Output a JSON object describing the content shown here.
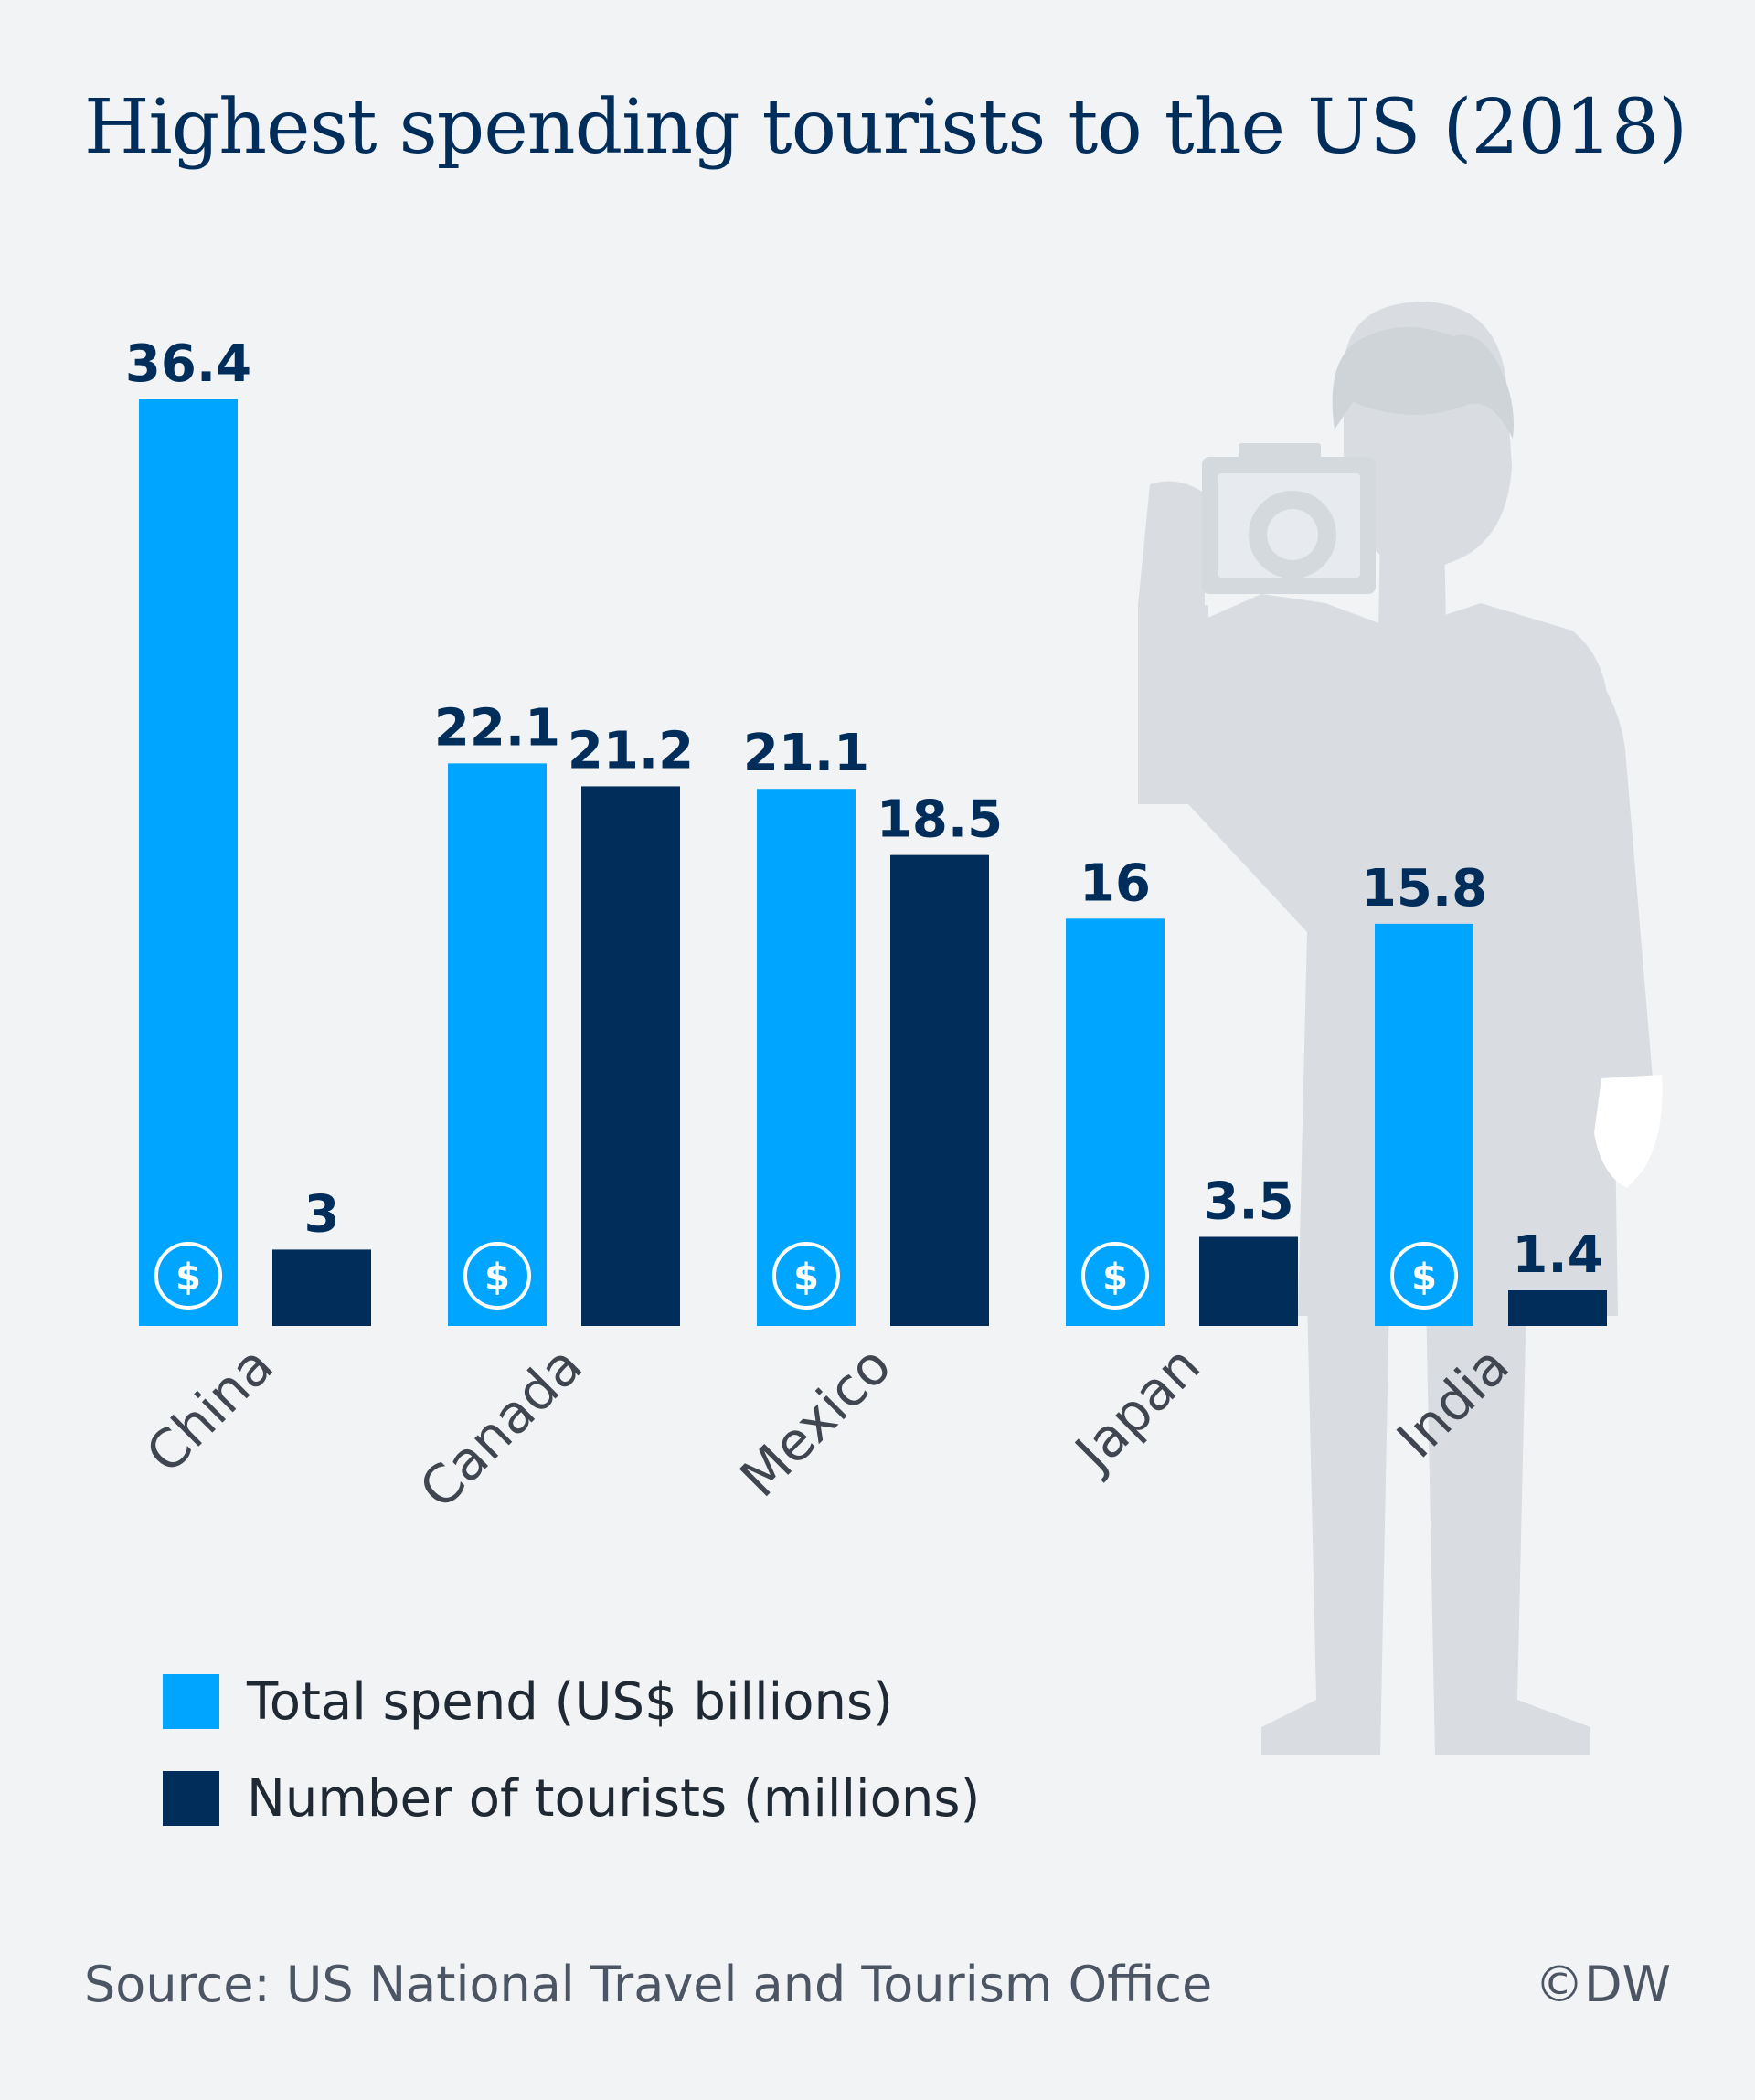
{
  "chart_data": {
    "type": "bar",
    "title": "Highest spending tourists to the US (2018)",
    "categories": [
      "China",
      "Canada",
      "Mexico",
      "Japan",
      "India"
    ],
    "series": [
      {
        "name": "Total spend (US$ billions)",
        "values": [
          36.4,
          22.1,
          21.1,
          16,
          15.8
        ],
        "value_labels": [
          "36.4",
          "22.1",
          "21.1",
          "16",
          "15.8"
        ],
        "color": "#00a5ff",
        "icon": "dollar-icon"
      },
      {
        "name": "Number of tourists (millions)",
        "values": [
          3,
          21.2,
          18.5,
          3.5,
          1.4
        ],
        "value_labels": [
          "3",
          "21.2",
          "18.5",
          "3.5",
          "1.4"
        ],
        "color": "#002d5a"
      }
    ],
    "ylim": [
      0,
      36.4
    ],
    "grid": false,
    "legend_position": "bottom-left",
    "label_color": "#002d5a",
    "background_color": "#f1f3f5",
    "illustration": "tourist-with-camera-silhouette",
    "illustration_color": "#d9dde1",
    "dollar_symbol": "$"
  },
  "source": "Source: US National Travel and Tourism Office",
  "credit": "©DW"
}
